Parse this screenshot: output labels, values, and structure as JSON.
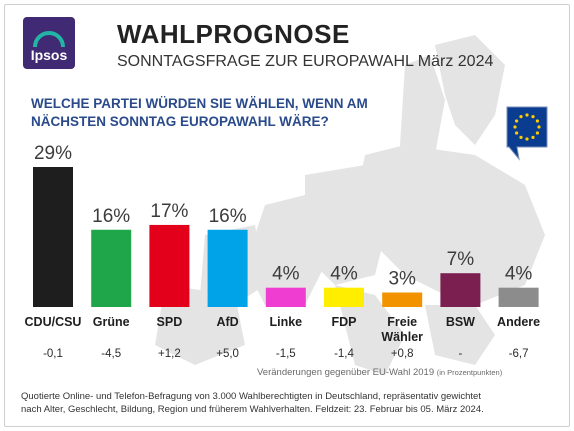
{
  "header": {
    "logo_text": "Ipsos",
    "title": "WAHLPROGNOSE",
    "subtitle": "SONNTAGSFRAGE ZUR EUROPAWAHL März 2024"
  },
  "question": {
    "line1": "WELCHE PARTEI WÜRDEN SIE WÄHLEN, WENN AM",
    "line2": "NÄCHSTEN SONNTAG EUROPAWAHL WÄRE?"
  },
  "chart_data": {
    "type": "bar",
    "title": "WAHLPROGNOSE",
    "categories": [
      "CDU/CSU",
      "Grüne",
      "SPD",
      "AfD",
      "Linke",
      "FDP",
      "Freie Wähler",
      "BSW",
      "Andere"
    ],
    "category_label_lines": [
      [
        "CDU/CSU"
      ],
      [
        "Grüne"
      ],
      [
        "SPD"
      ],
      [
        "AfD"
      ],
      [
        "Linke"
      ],
      [
        "FDP"
      ],
      [
        "Freie",
        "Wähler"
      ],
      [
        "BSW"
      ],
      [
        "Andere"
      ]
    ],
    "values": [
      29,
      16,
      17,
      16,
      4,
      4,
      3,
      7,
      4
    ],
    "value_labels": [
      "29%",
      "16%",
      "17%",
      "16%",
      "4%",
      "4%",
      "3%",
      "7%",
      "4%"
    ],
    "colors": [
      "#1e1e1e",
      "#1fa64b",
      "#e3001b",
      "#00a2e8",
      "#ee3dd0",
      "#ffee00",
      "#f39200",
      "#7a1f4f",
      "#8c8c8c"
    ],
    "changes": [
      "-0,1",
      "-4,5",
      "+1,2",
      "+5,0",
      "-1,5",
      "-1,4",
      "+0,8",
      "-",
      "-6,7"
    ],
    "ylim": [
      0,
      29
    ],
    "grid": false
  },
  "notes": {
    "change_note": "Veränderungen gegenüber EU-Wahl 2019",
    "change_note_unit": "(in Prozentpunkten)",
    "footer_line1": "Quotierte Online- und Telefon-Befragung von 3.000 Wahlberechtigten in Deutschland, repräsentativ gewichtet",
    "footer_line2": "nach Alter, Geschlecht, Bildung, Region und früherem Wahlverhalten. Feldzeit: 23. Februar bis 05. März 2024."
  },
  "colors": {
    "question_blue": "#2a4a8a",
    "logo_purple": "#3f2a73",
    "map_grey": "#e4e4e4",
    "eu_blue": "#0a3d8f",
    "eu_star": "#ffcc00"
  },
  "icons": {
    "logo": "ipsos-logo",
    "eu_badge": "eu-flag-speech-icon",
    "background": "europe-map"
  }
}
